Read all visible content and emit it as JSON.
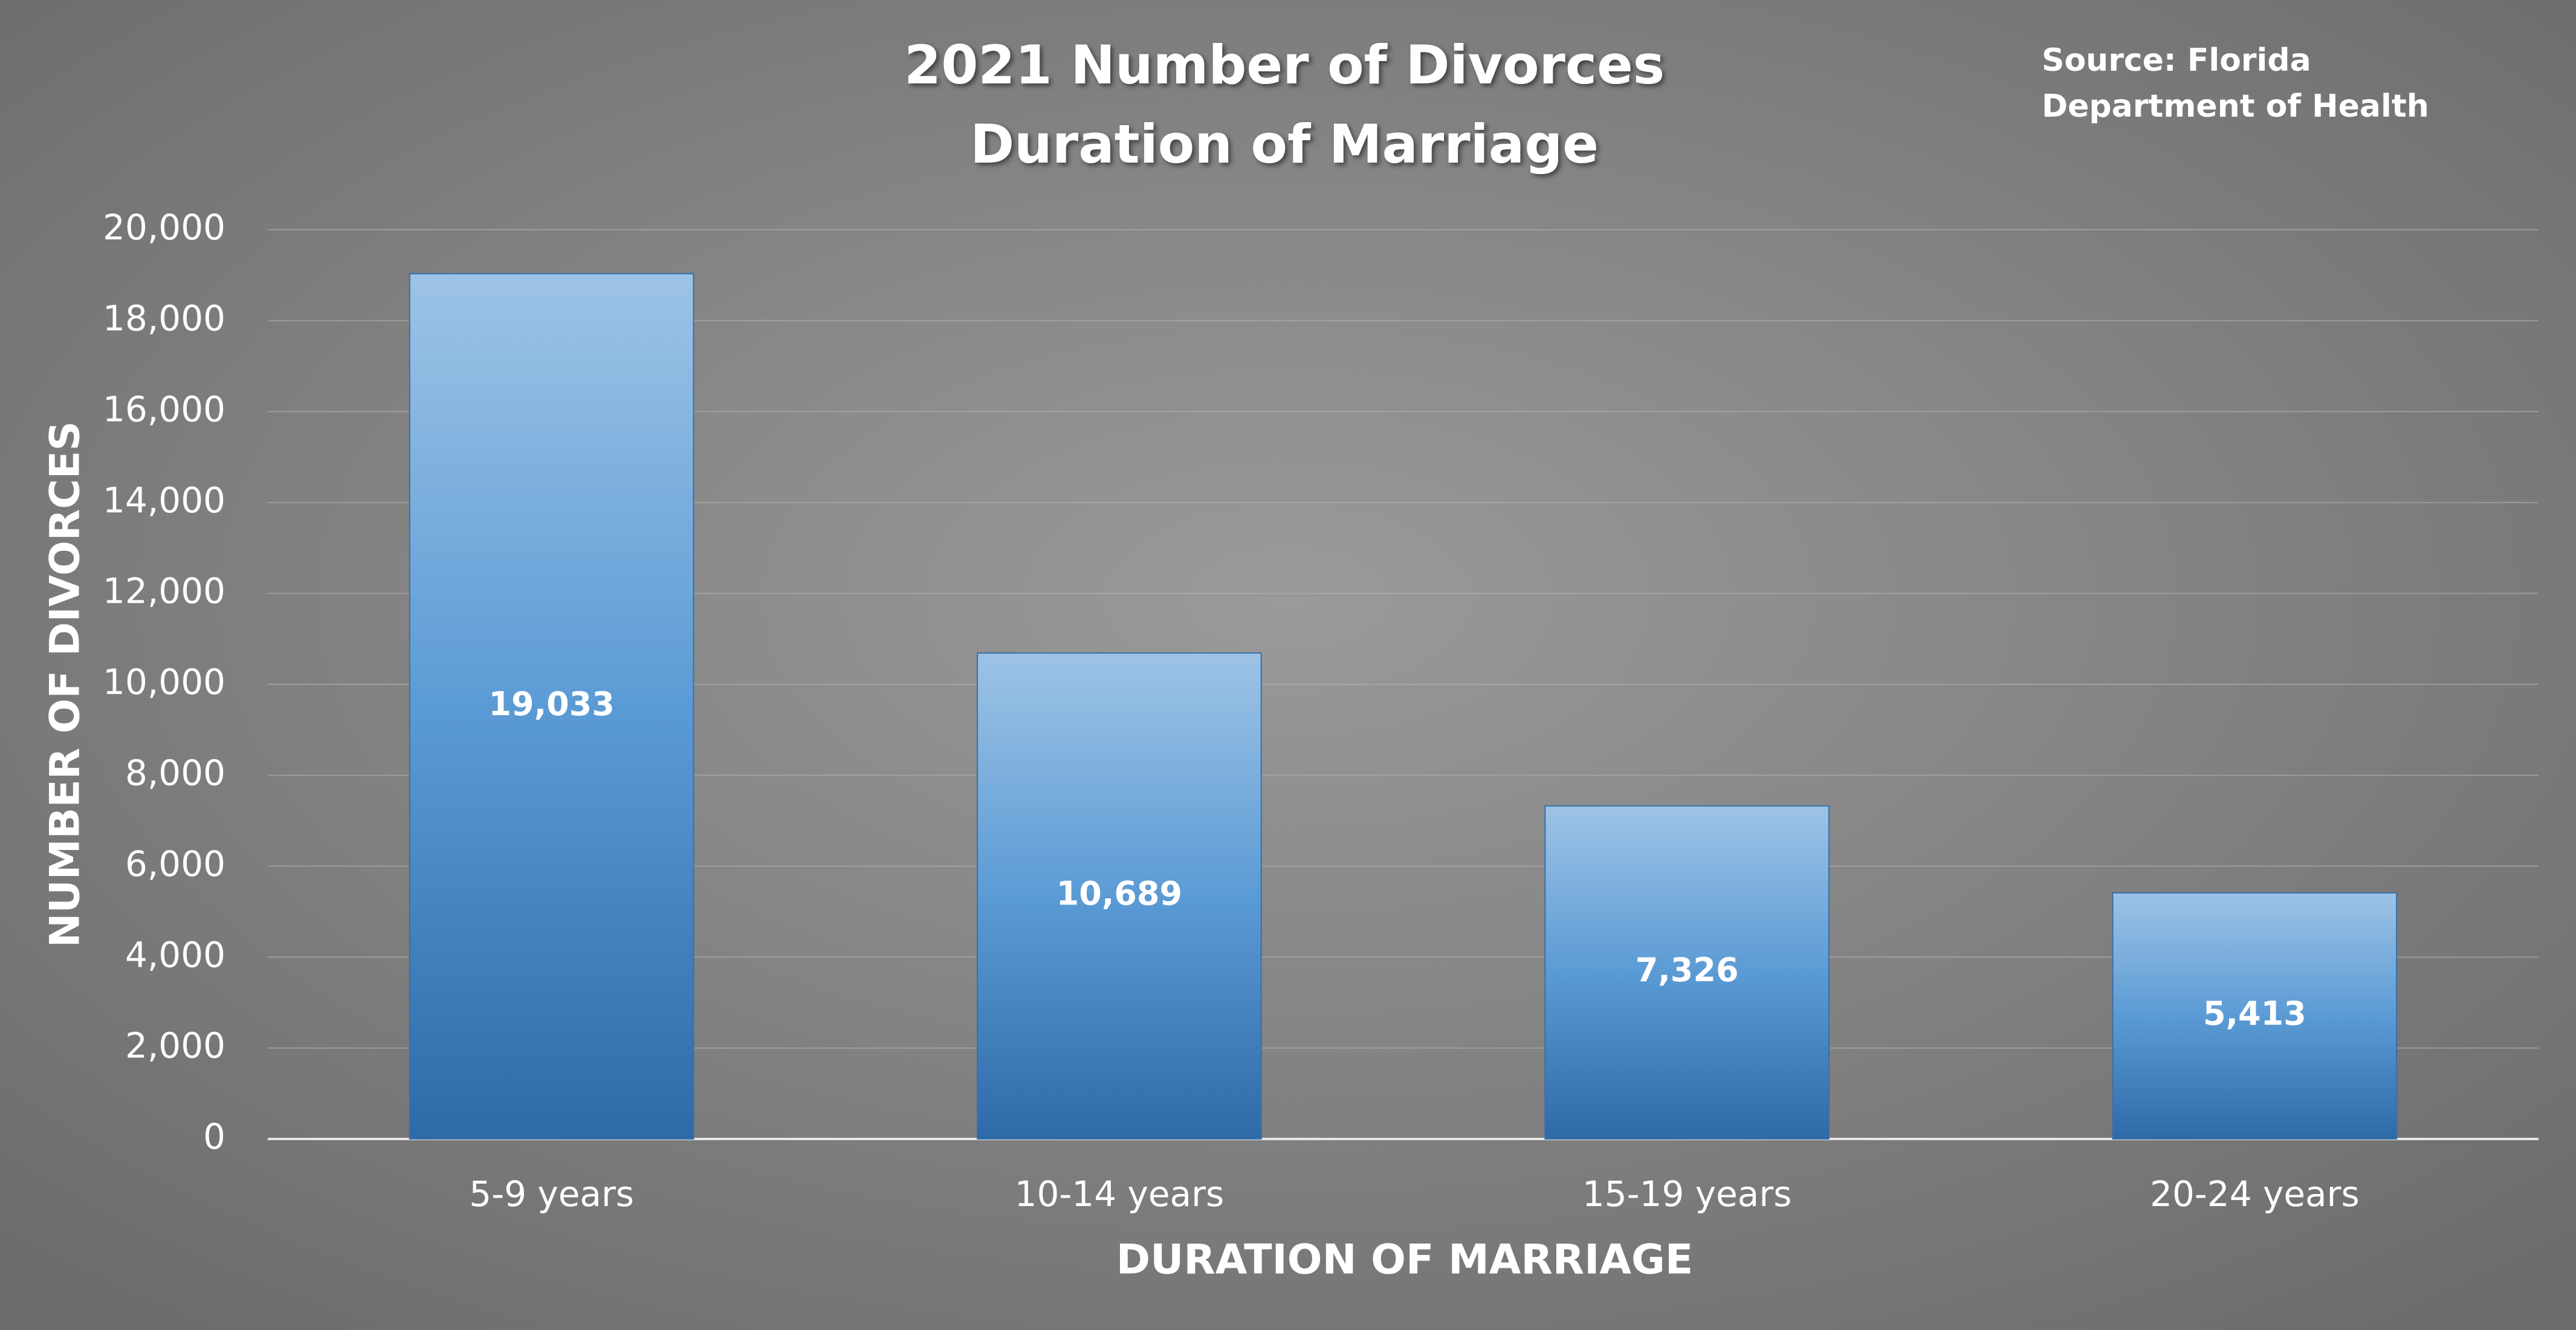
{
  "chart_data": {
    "type": "bar",
    "title": [
      "2021 Number of Divorces",
      "Duration of Marriage"
    ],
    "annotation": [
      "Source: Florida",
      "Department of Health"
    ],
    "x_label": "DURATION OF MARRIAGE",
    "y_label": "NUMBER OF DIVORCES",
    "categories": [
      "5-9 years",
      "10-14 years",
      "15-19 years",
      "20-24 years"
    ],
    "values": [
      19033,
      10689,
      7326,
      5413
    ],
    "value_labels": [
      "19,033",
      "10,689",
      "7,326",
      "5,413"
    ],
    "color": [
      "#9dc3e6",
      "#2e6aa8"
    ],
    "ylim": [
      0,
      20000
    ],
    "yticks": [
      0,
      {
        "value": 2000,
        "label": "2,000"
      },
      {
        "value": 4000,
        "label": "4,000"
      },
      {
        "value": 6000,
        "label": "6,000"
      },
      {
        "value": 8000,
        "label": "8,000"
      },
      {
        "value": 10000,
        "label": "10,000"
      },
      {
        "value": 12000,
        "label": "12,000"
      },
      {
        "value": 14000,
        "label": "14,000"
      },
      {
        "value": 16000,
        "label": "16,000"
      },
      {
        "value": 18000,
        "label": "18,000"
      },
      {
        "value": 20000,
        "label": "20,000"
      }
    ],
    "grid": true
  }
}
